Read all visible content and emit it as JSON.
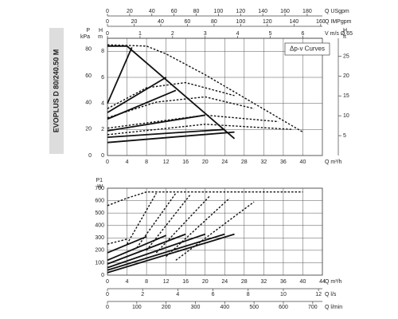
{
  "side_label": "EVOPLUS D 80/240.50 M",
  "chart_data": [
    {
      "type": "line",
      "annotation": "Δp-v Curves",
      "xlim": [
        0,
        44
      ],
      "xticks": [
        0,
        4,
        8,
        12,
        16,
        20,
        24,
        28,
        32,
        36,
        40
      ],
      "x_label": "Q m³/h",
      "ylim": [
        0,
        9
      ],
      "yticks": [
        0,
        2,
        4,
        6,
        8
      ],
      "y_label": [
        "H",
        "m"
      ],
      "p_axis": {
        "label": [
          "P",
          "kPa"
        ],
        "lim": [
          0,
          88.3
        ],
        "ticks": [
          0,
          20,
          40,
          60,
          80
        ]
      },
      "y2lim": [
        0,
        29.5
      ],
      "y2ticks": [
        5,
        10,
        15,
        20,
        25
      ],
      "y2_label": [
        "H",
        "ft"
      ],
      "top_axes": [
        {
          "label": "Q USgpm",
          "lim": [
            0,
            193.7
          ],
          "ticks": [
            0,
            20,
            40,
            60,
            80,
            100,
            120,
            140,
            160,
            180
          ]
        },
        {
          "label": "Q IMPgpm",
          "lim": [
            0,
            161.3
          ],
          "ticks": [
            0,
            20,
            40,
            60,
            80,
            100,
            120,
            140,
            160
          ]
        },
        {
          "label": "V m/s Ø 65",
          "lim": [
            0,
            6.6
          ],
          "ticks": [
            0,
            1,
            2,
            3,
            4,
            5,
            6
          ]
        }
      ],
      "grid": true,
      "series": [
        {
          "color": "#111",
          "dash": false,
          "x": [
            0,
            4,
            26
          ],
          "values": [
            8.4,
            8.4,
            1.3
          ]
        },
        {
          "color": "#111",
          "dash": false,
          "x": [
            0,
            5
          ],
          "values": [
            4.0,
            8.3
          ]
        },
        {
          "color": "#111",
          "dash": false,
          "x": [
            0,
            12
          ],
          "values": [
            3.3,
            6.0
          ]
        },
        {
          "color": "#111",
          "dash": false,
          "x": [
            0,
            14
          ],
          "values": [
            2.8,
            5.0
          ]
        },
        {
          "color": "#111",
          "dash": false,
          "x": [
            0,
            20
          ],
          "values": [
            1.9,
            3.1
          ]
        },
        {
          "color": "#111",
          "dash": false,
          "x": [
            0,
            24
          ],
          "values": [
            1.4,
            2.0
          ]
        },
        {
          "color": "#111",
          "dash": false,
          "x": [
            0,
            26
          ],
          "values": [
            1.0,
            1.8
          ]
        },
        {
          "color": "#111",
          "dash": true,
          "x": [
            0,
            8,
            12,
            20,
            30,
            40
          ],
          "values": [
            8.5,
            8.4,
            7.8,
            6.2,
            4.0,
            1.8
          ]
        },
        {
          "color": "#111",
          "dash": true,
          "x": [
            0,
            8,
            16,
            26
          ],
          "values": [
            3.6,
            5.2,
            5.6,
            4.6
          ]
        },
        {
          "color": "#111",
          "dash": true,
          "x": [
            0,
            10,
            20,
            30
          ],
          "values": [
            2.9,
            4.1,
            4.5,
            3.6
          ]
        },
        {
          "color": "#111",
          "dash": true,
          "x": [
            0,
            20,
            35
          ],
          "values": [
            2.1,
            3.1,
            2.6
          ]
        },
        {
          "color": "#111",
          "dash": true,
          "x": [
            0,
            20,
            38
          ],
          "values": [
            1.6,
            2.4,
            2.0
          ]
        }
      ]
    },
    {
      "type": "line",
      "xlim": [
        0,
        44
      ],
      "xticks": [
        0,
        4,
        8,
        12,
        16,
        20,
        24,
        28,
        32,
        36,
        40,
        44
      ],
      "x_label": "Q m³/h",
      "ylim": [
        0,
        700
      ],
      "yticks": [
        0,
        100,
        200,
        300,
        400,
        500,
        600,
        700
      ],
      "y_label": [
        "P1",
        "W"
      ],
      "bottom_axes": [
        {
          "label": "Q l/s",
          "lim": [
            0,
            12.22
          ],
          "ticks": [
            0,
            2,
            4,
            6,
            8,
            10,
            12
          ]
        },
        {
          "label": "Q l/min",
          "lim": [
            0,
            733
          ],
          "ticks": [
            0,
            100,
            200,
            300,
            400,
            500,
            600,
            700
          ]
        }
      ],
      "grid": true,
      "series": [
        {
          "color": "#111",
          "dash": true,
          "x": [
            0,
            4,
            8,
            40
          ],
          "values": [
            560,
            620,
            670,
            670
          ]
        },
        {
          "color": "#111",
          "dash": true,
          "x": [
            4,
            10
          ],
          "values": [
            250,
            660
          ]
        },
        {
          "color": "#111",
          "dash": true,
          "x": [
            6,
            14
          ],
          "values": [
            220,
            660
          ]
        },
        {
          "color": "#111",
          "dash": true,
          "x": [
            8,
            17
          ],
          "values": [
            200,
            650
          ]
        },
        {
          "color": "#111",
          "dash": true,
          "x": [
            10,
            21
          ],
          "values": [
            180,
            640
          ]
        },
        {
          "color": "#111",
          "dash": true,
          "x": [
            12,
            25
          ],
          "values": [
            150,
            620
          ]
        },
        {
          "color": "#111",
          "dash": true,
          "x": [
            14,
            30
          ],
          "values": [
            120,
            590
          ]
        },
        {
          "color": "#111",
          "dash": true,
          "x": [
            0,
            4
          ],
          "values": [
            250,
            290
          ]
        },
        {
          "color": "#111",
          "dash": false,
          "x": [
            0,
            8
          ],
          "values": [
            180,
            310
          ]
        },
        {
          "color": "#111",
          "dash": false,
          "x": [
            0,
            12
          ],
          "values": [
            120,
            320
          ]
        },
        {
          "color": "#111",
          "dash": false,
          "x": [
            0,
            16
          ],
          "values": [
            90,
            330
          ]
        },
        {
          "color": "#111",
          "dash": false,
          "x": [
            0,
            20
          ],
          "values": [
            60,
            330
          ]
        },
        {
          "color": "#111",
          "dash": false,
          "x": [
            0,
            24
          ],
          "values": [
            40,
            330
          ]
        },
        {
          "color": "#111",
          "dash": false,
          "x": [
            0,
            26
          ],
          "values": [
            20,
            330
          ]
        }
      ]
    }
  ]
}
